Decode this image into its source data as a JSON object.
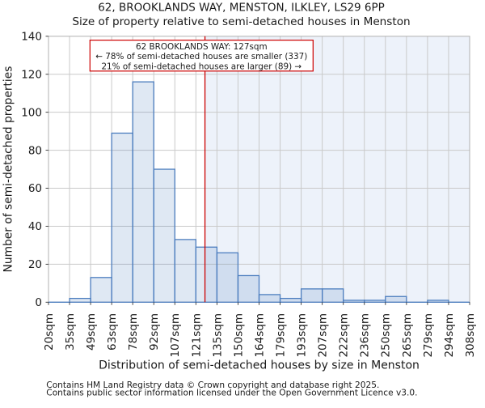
{
  "page": {
    "background": "#ffffff"
  },
  "title": {
    "line1": "62, BROOKLANDS WAY, MENSTON, ILKLEY, LS29 6PP",
    "line2": "Size of property relative to semi-detached houses in Menston"
  },
  "chart_data": {
    "type": "bar",
    "title": "62, BROOKLANDS WAY, MENSTON, ILKLEY, LS29 6PP",
    "subtitle": "Size of property relative to semi-detached houses in Menston",
    "xlabel": "Distribution of semi-detached houses by size in Menston",
    "ylabel": "Number of semi-detached properties",
    "categories": [
      "20sqm",
      "35sqm",
      "49sqm",
      "63sqm",
      "78sqm",
      "92sqm",
      "107sqm",
      "121sqm",
      "135sqm",
      "150sqm",
      "164sqm",
      "179sqm",
      "193sqm",
      "207sqm",
      "222sqm",
      "236sqm",
      "250sqm",
      "265sqm",
      "279sqm",
      "294sqm",
      "308sqm"
    ],
    "values": [
      0,
      2,
      13,
      89,
      116,
      70,
      33,
      29,
      26,
      14,
      4,
      2,
      7,
      7,
      1,
      1,
      3,
      0,
      1,
      0
    ],
    "xlim": [
      20,
      308
    ],
    "ylim": [
      0,
      140
    ],
    "yticks": [
      0,
      20,
      40,
      60,
      80,
      100,
      120,
      140
    ],
    "grid": true,
    "legend": false,
    "marker": {
      "value_sqm": 127,
      "color": "#cc0000"
    },
    "annotation": {
      "line1": "62 BROOKLANDS WAY: 127sqm",
      "line2": "← 78% of semi-detached houses are smaller (337)",
      "line3": "21% of semi-detached houses are larger (89) →"
    },
    "colors": {
      "bar_fill": "#4d7ebf",
      "bar_fill_opacity": 0.18,
      "bar_edge": "#4d7ebf",
      "shade_region": "#edf2fa",
      "gridline": "#c9c9c9",
      "frame": "#b0b0b0",
      "tick": "#333333",
      "marker_line": "#cc0000",
      "annotation_border": "#cc0000",
      "annotation_bg": "#ffffff",
      "text": "#1a1a1a",
      "footer_text": "#555555"
    }
  },
  "footer": {
    "line1": "Contains HM Land Registry data © Crown copyright and database right 2025.",
    "line2": "Contains public sector information licensed under the Open Government Licence v3.0."
  }
}
